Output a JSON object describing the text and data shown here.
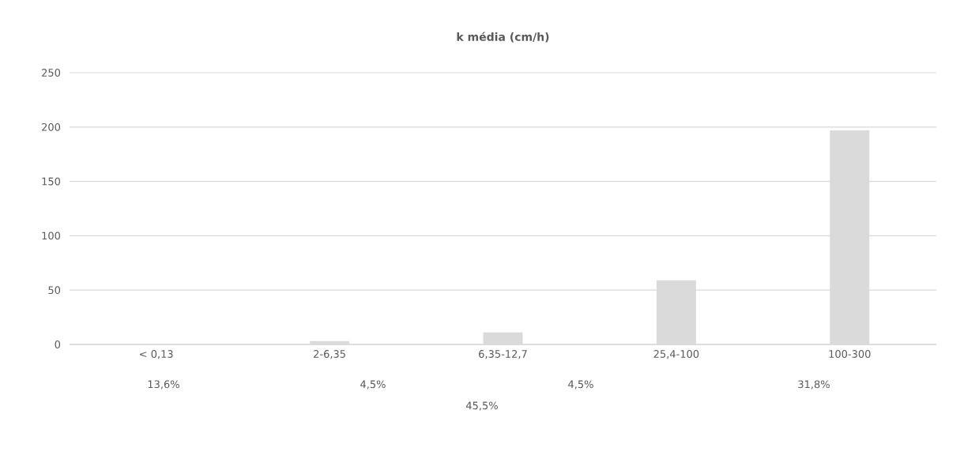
{
  "chart_data": {
    "type": "bar",
    "title": "k média (cm/h)",
    "categories": [
      "< 0,13",
      "2-6,35",
      "6,35-12,7",
      "25,4-100",
      "100-300"
    ],
    "values": [
      0,
      3,
      11,
      59,
      197
    ],
    "color": "#dadada",
    "ylim": [
      0,
      250
    ],
    "yticks": [
      0,
      50,
      100,
      150,
      200,
      250
    ],
    "grid": "y",
    "annotations": [
      "13,6%",
      "4,5%",
      "45,5%",
      "4,5%",
      "31,8%"
    ]
  }
}
